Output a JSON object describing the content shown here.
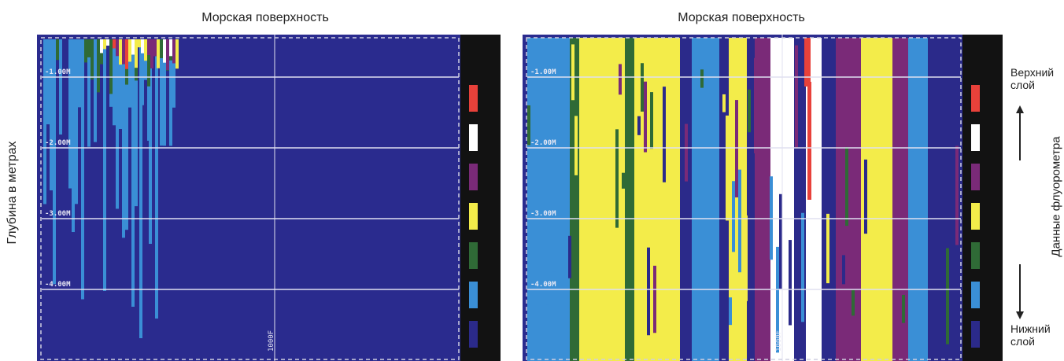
{
  "panels": [
    {
      "title": "Морская поверхность",
      "depth_labels": [
        "-1.00M",
        "-2.00M",
        "-3.00M",
        "-4.00M"
      ],
      "bottom_marker": "1000F"
    },
    {
      "title": "Морская поверхность",
      "depth_labels": [
        "-1.00M",
        "-2.00M",
        "-3.00M",
        "-4.00M"
      ],
      "bottom_marker": "1000F"
    }
  ],
  "ylabel": "Глубина в метрах",
  "right_label": "Данные флуорометра",
  "top_layer": "Верхний\nслой",
  "bottom_layer": "Нижний\nслой",
  "colors": {
    "background": "#2a2b8e",
    "scale_top_to_bottom": [
      "#e8413a",
      "#ffffff",
      "#7a2a78",
      "#f3ec4a",
      "#2f6a36",
      "#3a8fd6",
      "#2b2a8a"
    ]
  }
}
